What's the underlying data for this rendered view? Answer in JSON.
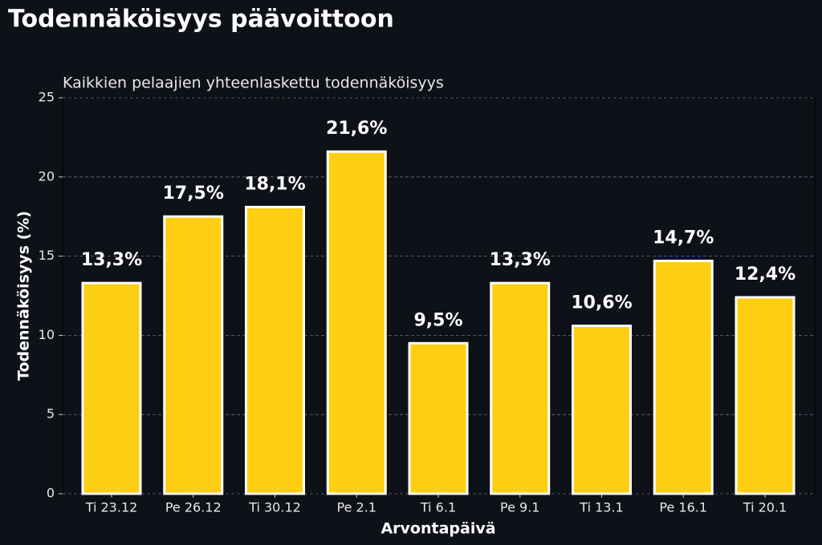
{
  "chart_data": {
    "type": "bar",
    "title": "Todennäköisyys päävoittoon",
    "subtitle": "Kaikkien pelaajien yhteenlaskettu todennäköisyys",
    "x_label": "Arvontapäivä",
    "y_label": "Todennäköisyys (%)",
    "categories": [
      "Ti 23.12",
      "Pe 26.12",
      "Ti 30.12",
      "Pe 2.1",
      "Ti 6.1",
      "Pe 9.1",
      "Ti 13.1",
      "Pe 16.1",
      "Ti 20.1"
    ],
    "values": [
      13.3,
      17.5,
      18.1,
      21.6,
      9.5,
      13.3,
      10.6,
      14.7,
      12.4
    ],
    "value_labels": [
      "13,3%",
      "17,5%",
      "18,1%",
      "21,6%",
      "9,5%",
      "13,3%",
      "10,6%",
      "14,7%",
      "12,4%"
    ],
    "color": "#fdce12",
    "ylim": [
      0,
      25
    ],
    "yticks": [
      0,
      5,
      10,
      15,
      20,
      25
    ],
    "grid": true
  }
}
